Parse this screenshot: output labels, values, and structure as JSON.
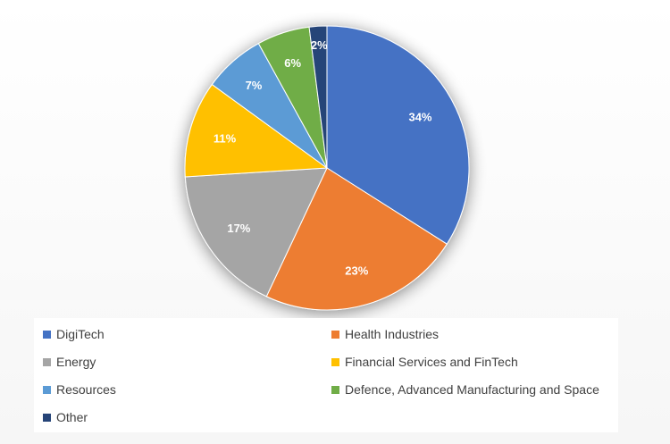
{
  "chart_data": {
    "type": "pie",
    "title": "",
    "slices": [
      {
        "label": "DigiTech",
        "value": 34,
        "display": "34%",
        "color": "#4472c4"
      },
      {
        "label": "Health Industries",
        "value": 23,
        "display": "23%",
        "color": "#ed7d31"
      },
      {
        "label": "Energy",
        "value": 17,
        "display": "17%",
        "color": "#a5a5a5"
      },
      {
        "label": "Financial Services and FinTech",
        "value": 11,
        "display": "11%",
        "color": "#ffc000"
      },
      {
        "label": "Resources",
        "value": 7,
        "display": "7%",
        "color": "#5b9bd5"
      },
      {
        "label": "Defence, Advanced Manufacturing and Space",
        "value": 6,
        "display": "6%",
        "color": "#70ad47"
      },
      {
        "label": "Other",
        "value": 2,
        "display": "2%",
        "color": "#264478"
      }
    ],
    "legend_position": "bottom"
  }
}
